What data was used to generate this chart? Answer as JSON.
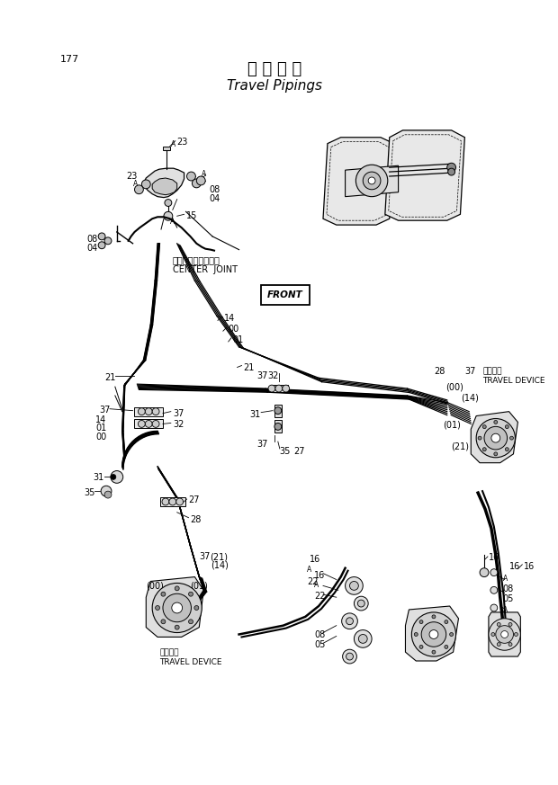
{
  "title_japanese": "走 行 配 管",
  "title_english": "Travel Pipings",
  "page_number": "177",
  "background_color": "#ffffff",
  "figsize": [
    6.2,
    8.73
  ],
  "dpi": 100,
  "labels": {
    "center_joint_jp": "センタージョイント",
    "center_joint_en": "CENTER  JOINT",
    "travel_device_jp": "走行装置",
    "travel_device_en": "TRAVEL DEVICE",
    "front": "FRONT"
  }
}
